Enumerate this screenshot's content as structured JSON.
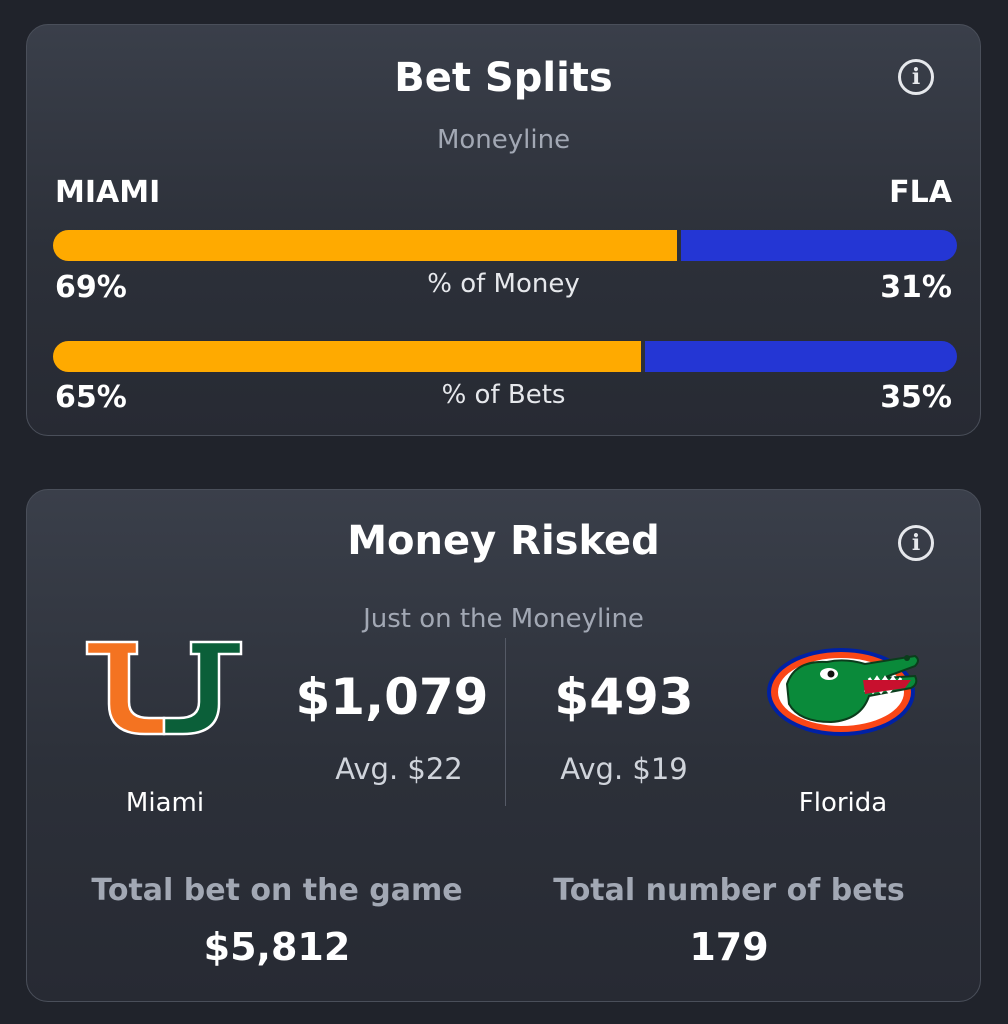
{
  "bet_splits": {
    "title": "Bet Splits",
    "subtitle": "Moneyline",
    "info_icon": "info-icon",
    "team_a": "MIAMI",
    "team_b": "FLA",
    "colors": {
      "team_a": "#ffaa00",
      "team_b": "#2436d4"
    },
    "money": {
      "label": "% of Money",
      "a_label": "69%",
      "b_label": "31%",
      "a_fraction": 0.69
    },
    "bets": {
      "label": "% of Bets",
      "a_label": "65%",
      "b_label": "35%",
      "a_fraction": 0.65
    }
  },
  "money_risked": {
    "title": "Money Risked",
    "subtitle": "Just on the Moneyline",
    "info_icon": "info-icon",
    "team_a": {
      "name": "Miami",
      "amount": "$1,079",
      "avg": "Avg. $22",
      "logo": "miami-u-logo"
    },
    "team_b": {
      "name": "Florida",
      "amount": "$493",
      "avg": "Avg. $19",
      "logo": "florida-gator-logo"
    },
    "total_bet": {
      "label": "Total bet on the game",
      "value": "$5,812"
    },
    "total_count": {
      "label": "Total number of bets",
      "value": "179"
    }
  }
}
